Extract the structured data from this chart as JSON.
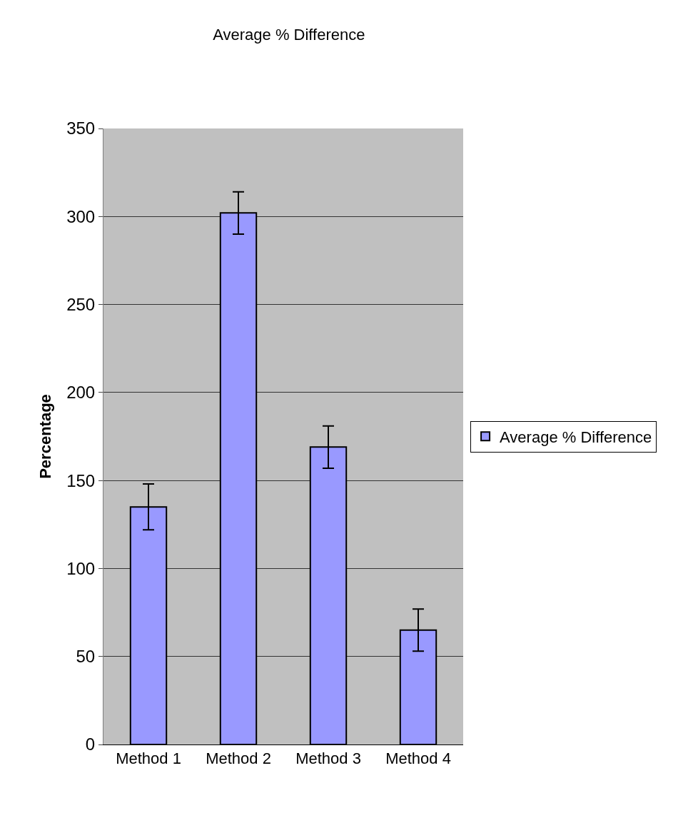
{
  "chart_data": {
    "type": "bar",
    "title": "Average % Difference",
    "ylabel": "Percentage",
    "categories": [
      "Method 1",
      "Method 2",
      "Method 3",
      "Method 4"
    ],
    "series": [
      {
        "name": "Average % Difference",
        "color": "#9999ff",
        "values": [
          135,
          302,
          169,
          65
        ],
        "errors": [
          13,
          12,
          12,
          12
        ]
      }
    ],
    "ylim": [
      0,
      350
    ],
    "yticks": [
      0,
      50,
      100,
      150,
      200,
      250,
      300,
      350
    ],
    "grid": "y",
    "legend": "right"
  }
}
